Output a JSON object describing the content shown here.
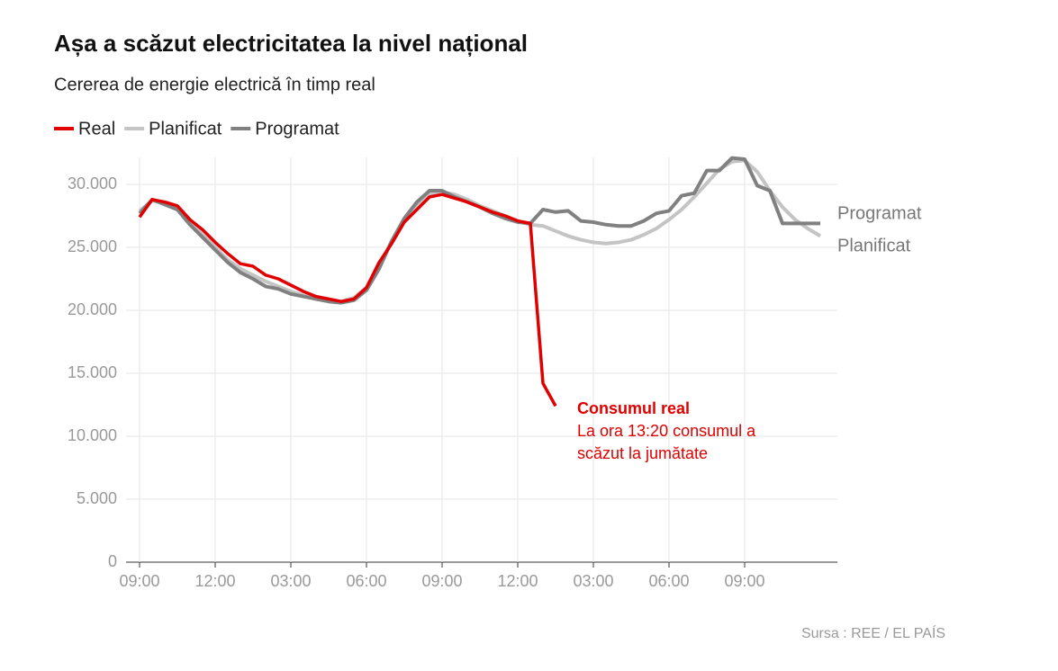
{
  "chart_data": {
    "type": "line",
    "title": "Așa a scăzut electricitatea la nivel național",
    "subtitle": "Cererea de energie electrică în timp real",
    "source": "Sursa : REE / EL PAÍS",
    "annotation": {
      "title": "Consumul real",
      "lines": [
        "La ora 13:20 consumul a",
        "scăzut la jumătate"
      ]
    },
    "categories": [
      "09:00",
      null,
      null,
      null,
      null,
      null,
      "12:00",
      null,
      null,
      null,
      null,
      null,
      "03:00",
      null,
      null,
      null,
      null,
      null,
      "06:00",
      null,
      null,
      null,
      null,
      null,
      "09:00",
      null,
      null,
      null,
      null,
      null,
      "12:00",
      null,
      null,
      null,
      null,
      null,
      "03:00",
      null,
      null,
      null,
      null,
      null,
      "06:00",
      null,
      null,
      null,
      null,
      null,
      "09:00",
      null,
      null,
      null,
      null,
      null,
      null
    ],
    "series": [
      {
        "name": "Planificat",
        "color": "#c4c4c4",
        "values": [
          27900,
          28700,
          28500,
          28000,
          27000,
          26000,
          25000,
          24000,
          23300,
          22800,
          22300,
          21900,
          21500,
          21200,
          21000,
          20800,
          20700,
          21000,
          21800,
          23500,
          25500,
          27200,
          28400,
          29200,
          29400,
          29200,
          28800,
          28300,
          27900,
          27500,
          27100,
          26800,
          26700,
          26300,
          25900,
          25600,
          25400,
          25300,
          25400,
          25600,
          26000,
          26500,
          27200,
          28000,
          29000,
          30100,
          31200,
          31800,
          31900,
          31000,
          29500,
          28200,
          27200,
          26500,
          25900
        ]
      },
      {
        "name": "Programat",
        "color": "#808080",
        "values": [
          27700,
          28800,
          28400,
          28000,
          26800,
          25800,
          24800,
          23800,
          23000,
          22500,
          21900,
          21700,
          21300,
          21100,
          20900,
          20700,
          20600,
          20800,
          21600,
          23300,
          25500,
          27300,
          28600,
          29500,
          29500,
          29000,
          28600,
          28200,
          27700,
          27300,
          27000,
          26900,
          28000,
          27800,
          27900,
          27100,
          27000,
          26800,
          26700,
          26700,
          27100,
          27700,
          27900,
          29100,
          29300,
          31100,
          31100,
          32100,
          32000,
          29900,
          29500,
          26900,
          26900,
          26900,
          26900
        ]
      },
      {
        "name": "Real",
        "color": "#e00000",
        "values": [
          27400,
          28800,
          28600,
          28300,
          27200,
          26400,
          25400,
          24500,
          23700,
          23500,
          22800,
          22500,
          22000,
          21500,
          21100,
          20900,
          20700,
          20900,
          21800,
          23800,
          25300,
          27000,
          28000,
          29000,
          29200,
          28900,
          28600,
          28200,
          27800,
          27500,
          27100,
          26900,
          14200,
          12400,
          null,
          null,
          null,
          null,
          null,
          null,
          null,
          null,
          null,
          null,
          null,
          null,
          null,
          null,
          null,
          null,
          null,
          null,
          null,
          null,
          null
        ]
      }
    ],
    "legend_order": [
      2,
      0,
      1
    ],
    "ylim": [
      0,
      32000
    ],
    "yticks": [
      0,
      {
        "value": 5000,
        "label": "5.000"
      },
      {
        "value": 10000,
        "label": "10.000"
      },
      {
        "value": 15000,
        "label": "15.000"
      },
      {
        "value": 20000,
        "label": "20.000"
      },
      {
        "value": 25000,
        "label": "25.000"
      },
      {
        "value": 30000,
        "label": "30.000"
      }
    ],
    "grid": true
  }
}
